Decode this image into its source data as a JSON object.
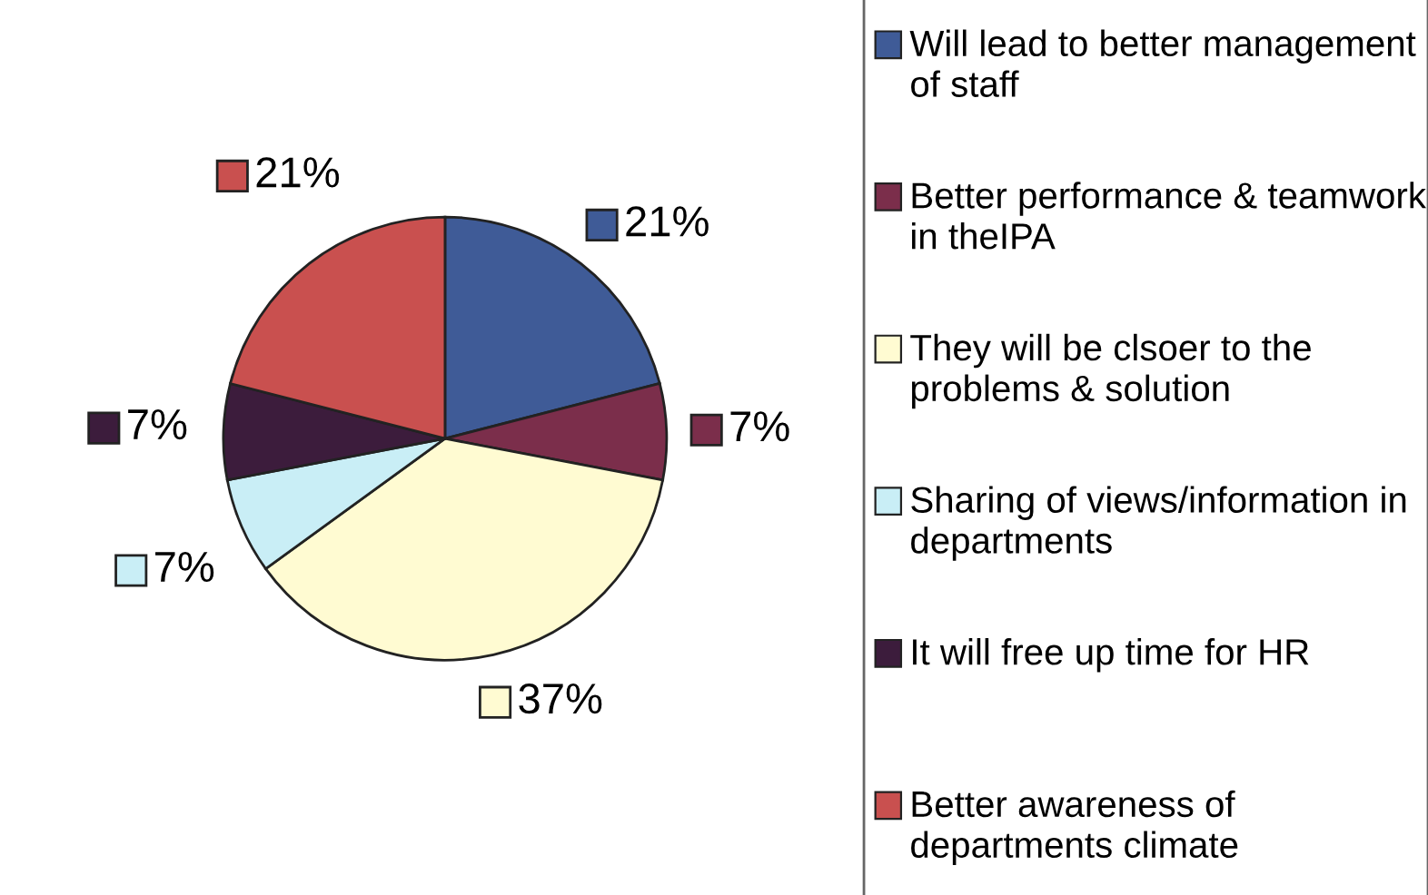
{
  "chart_data": {
    "type": "pie",
    "categories": [
      "Will lead to better management of staff",
      "Better performance & teamwork in theIPA",
      "They will be clsoer to the problems & solution",
      "Sharing of views/information in departments",
      "It will free up time for HR",
      "Better awareness of departments climate"
    ],
    "values": [
      21,
      7,
      37,
      7,
      7,
      21
    ],
    "value_labels": [
      "21%",
      "7%",
      "37%",
      "7%",
      "7%",
      "21%"
    ],
    "colors": [
      "#3f5b97",
      "#7b2e4b",
      "#fffbd2",
      "#c9eef6",
      "#3c1c3c",
      "#c9504f"
    ],
    "legend": "right"
  }
}
